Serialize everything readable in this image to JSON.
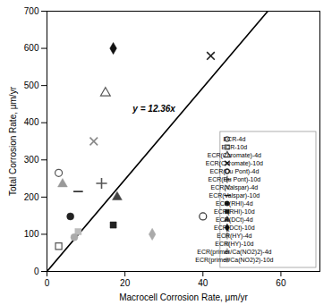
{
  "chart_data": {
    "type": "scatter",
    "xlabel": "Macrocell Corrosion Rate, μm/yr",
    "ylabel": "Total Corrosion Rate, μm/yr",
    "xlim": [
      0,
      70
    ],
    "ylim": [
      0,
      700
    ],
    "xticks": [
      0,
      20,
      40,
      60
    ],
    "yticks": [
      0,
      100,
      200,
      300,
      400,
      500,
      600,
      700
    ],
    "slope": 12.36,
    "annotations": [
      {
        "text": "y = 12.36x",
        "x": 22,
        "y": 430
      }
    ],
    "legend": "lower right",
    "series": [
      {
        "name": "ECR-4d",
        "marker": "circle-open",
        "color": "#555555",
        "x": [
          3
        ],
        "values": [
          265
        ]
      },
      {
        "name": "ECR-10d",
        "marker": "square-open",
        "color": "#555555",
        "x": [
          3
        ],
        "values": [
          68
        ]
      },
      {
        "name": "ECR(Chromate)-4d",
        "marker": "triangle-open",
        "color": "#555555",
        "x": [
          15
        ],
        "values": [
          480
        ]
      },
      {
        "name": "ECR(Chromate)-10d",
        "marker": "x",
        "color": "#222222",
        "x": [
          42
        ],
        "values": [
          580
        ]
      },
      {
        "name": "ECR(Du Pont)-4d",
        "marker": "circle-open",
        "color": "#333333",
        "x": [
          40
        ],
        "values": [
          148
        ]
      },
      {
        "name": "ECR(Du Pont)-10d",
        "marker": "plus",
        "color": "#555555",
        "x": [
          14
        ],
        "values": [
          237
        ]
      },
      {
        "name": "ECR(Valspar)-4d",
        "marker": "x",
        "color": "#888888",
        "x": [
          12
        ],
        "values": [
          350
        ]
      },
      {
        "name": "ECR(Valspar)-10d",
        "marker": "hline",
        "color": "#222222",
        "x": [
          8
        ],
        "values": [
          215
        ]
      },
      {
        "name": "ECR(RHI)-4d",
        "marker": "circle",
        "color": "#222222",
        "x": [
          6
        ],
        "values": [
          148
        ]
      },
      {
        "name": "ECR(RHI)-10d",
        "marker": "square",
        "color": "#222222",
        "x": [
          17
        ],
        "values": [
          125
        ]
      },
      {
        "name": "ECR(DCt)-4d",
        "marker": "triangle",
        "color": "#444444",
        "x": [
          18
        ],
        "values": [
          200
        ]
      },
      {
        "name": "ECR(DCt)-10d",
        "marker": "diamond",
        "color": "#111111",
        "x": [
          17
        ],
        "values": [
          600
        ]
      },
      {
        "name": "ECR(HY)-4d",
        "marker": "diamond",
        "color": "#aaaaaa",
        "x": [
          27
        ],
        "values": [
          100
        ]
      },
      {
        "name": "ECR(HY)-10d",
        "marker": "square",
        "color": "#bbbbbb",
        "x": [
          8
        ],
        "values": [
          107
        ]
      },
      {
        "name": "ECR(primer/Ca(NO2)2)-4d",
        "marker": "triangle",
        "color": "#999999",
        "x": [
          4
        ],
        "values": [
          235
        ]
      },
      {
        "name": "ECR(primer/Ca(NO2)2)-10d",
        "marker": "circle",
        "color": "#aaaaaa",
        "x": [
          7
        ],
        "values": [
          92
        ]
      }
    ]
  }
}
